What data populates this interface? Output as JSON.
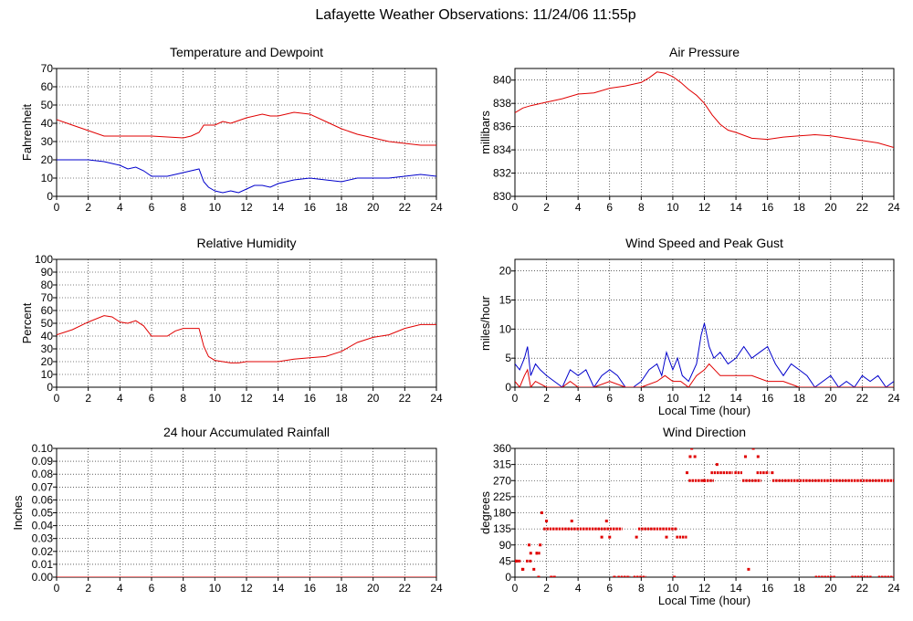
{
  "title": "Lafayette Weather Observations: 11/24/06 11:55p",
  "colors": {
    "red": "#e00000",
    "blue": "#0000cc",
    "grid": "#000000"
  },
  "chart_data": [
    {
      "id": "temp",
      "type": "line",
      "title": "Temperature and Dewpoint",
      "ylabel": "Fahrenheit",
      "xlabel": "",
      "xlim": [
        0,
        24
      ],
      "ylim": [
        0,
        70
      ],
      "yticks": [
        0,
        10,
        20,
        30,
        40,
        50,
        60,
        70
      ],
      "ytick_labels": [
        "0",
        "10",
        "20",
        "30",
        "40",
        "50",
        "60",
        "70"
      ],
      "xticks": [
        0,
        2,
        4,
        6,
        8,
        10,
        12,
        14,
        16,
        18,
        20,
        22,
        24
      ],
      "grid": true,
      "series": [
        {
          "color": "#e00000",
          "x": [
            0,
            1,
            2,
            3,
            3.5,
            4,
            5,
            6,
            7,
            8,
            8.5,
            9,
            9.3,
            10,
            10.5,
            11,
            12,
            13,
            13.5,
            14,
            15,
            16,
            17,
            18,
            19,
            20,
            21,
            22,
            23,
            24
          ],
          "y": [
            42,
            39,
            36,
            33,
            33,
            33,
            33,
            33,
            32.5,
            32,
            33,
            35,
            39,
            39,
            41,
            40,
            43,
            45,
            44,
            44,
            46,
            45,
            41,
            37,
            34,
            32,
            30,
            29,
            28,
            28
          ]
        },
        {
          "color": "#0000cc",
          "x": [
            0,
            1,
            2,
            3,
            3.5,
            4,
            4.5,
            5,
            5.5,
            6,
            7,
            7.5,
            8,
            8.5,
            9,
            9.3,
            9.6,
            10,
            10.5,
            11,
            11.5,
            12,
            12.5,
            13,
            13.5,
            14,
            15,
            16,
            17,
            18,
            19,
            20,
            21,
            22,
            23,
            24
          ],
          "y": [
            20,
            20,
            20,
            19,
            18,
            17,
            15,
            16,
            14,
            11,
            11,
            12,
            13,
            14,
            15,
            8,
            5,
            3,
            2,
            3,
            2,
            4,
            6,
            6,
            5,
            7,
            9,
            10,
            9,
            8,
            10,
            10,
            10,
            11,
            12,
            11
          ]
        }
      ]
    },
    {
      "id": "pressure",
      "type": "line",
      "title": "Air Pressure",
      "ylabel": "millibars",
      "xlabel": "",
      "xlim": [
        0,
        24
      ],
      "ylim": [
        830,
        841
      ],
      "yticks": [
        830,
        832,
        834,
        836,
        838,
        840
      ],
      "ytick_labels": [
        "830",
        "832",
        "834",
        "836",
        "838",
        "840"
      ],
      "xticks": [
        0,
        2,
        4,
        6,
        8,
        10,
        12,
        14,
        16,
        18,
        20,
        22,
        24
      ],
      "grid": true,
      "series": [
        {
          "color": "#e00000",
          "x": [
            0,
            0.5,
            1,
            2,
            3,
            4,
            5,
            6,
            7,
            8,
            8.5,
            9,
            9.5,
            10,
            10.5,
            11,
            11.5,
            12,
            12.5,
            13,
            13.5,
            14,
            15,
            16,
            17,
            18,
            19,
            20,
            21,
            22,
            23,
            24
          ],
          "y": [
            837.2,
            837.6,
            837.8,
            838.1,
            838.4,
            838.8,
            838.9,
            839.3,
            839.5,
            839.8,
            840.2,
            840.7,
            840.6,
            840.3,
            839.8,
            839.2,
            838.7,
            838.0,
            837.0,
            836.2,
            835.7,
            835.5,
            835.0,
            834.9,
            835.1,
            835.2,
            835.3,
            835.2,
            835.0,
            834.8,
            834.6,
            834.2
          ]
        }
      ]
    },
    {
      "id": "humidity",
      "type": "line",
      "title": "Relative Humidity",
      "ylabel": "Percent",
      "xlabel": "",
      "xlim": [
        0,
        24
      ],
      "ylim": [
        0,
        100
      ],
      "yticks": [
        0,
        10,
        20,
        30,
        40,
        50,
        60,
        70,
        80,
        90,
        100
      ],
      "ytick_labels": [
        "0",
        "10",
        "20",
        "30",
        "40",
        "50",
        "60",
        "70",
        "80",
        "90",
        "100"
      ],
      "xticks": [
        0,
        2,
        4,
        6,
        8,
        10,
        12,
        14,
        16,
        18,
        20,
        22,
        24
      ],
      "grid": true,
      "series": [
        {
          "color": "#e00000",
          "x": [
            0,
            1,
            2,
            3,
            3.5,
            4,
            4.5,
            5,
            5.5,
            6,
            7,
            7.5,
            8,
            8.5,
            9,
            9.3,
            9.6,
            10,
            11,
            11.5,
            12,
            13,
            14,
            15,
            16,
            17,
            18,
            19,
            20,
            21,
            22,
            23,
            24
          ],
          "y": [
            41,
            45,
            51,
            56,
            55,
            51,
            50,
            52,
            48,
            40,
            40,
            44,
            46,
            46,
            46,
            32,
            24,
            21,
            19,
            19,
            20,
            20,
            20,
            22,
            23,
            24,
            28,
            35,
            39,
            41,
            46,
            49,
            49
          ]
        }
      ]
    },
    {
      "id": "wind",
      "type": "line",
      "title": "Wind Speed and Peak Gust",
      "ylabel": "miles/hour",
      "xlabel": "Local Time (hour)",
      "xlim": [
        0,
        24
      ],
      "ylim": [
        0,
        22
      ],
      "yticks": [
        0,
        5,
        10,
        15,
        20
      ],
      "ytick_labels": [
        "0",
        "5",
        "10",
        "15",
        "20"
      ],
      "xticks": [
        0,
        2,
        4,
        6,
        8,
        10,
        12,
        14,
        16,
        18,
        20,
        22,
        24
      ],
      "grid": true,
      "series": [
        {
          "color": "#0000cc",
          "x": [
            0,
            0.3,
            0.6,
            0.8,
            1.0,
            1.3,
            1.6,
            2.0,
            2.5,
            3.0,
            3.5,
            4.0,
            4.5,
            5.0,
            5.5,
            6.0,
            6.5,
            7.0,
            7.5,
            8.0,
            8.5,
            9.0,
            9.3,
            9.6,
            10.0,
            10.3,
            10.6,
            11.0,
            11.5,
            11.8,
            12.0,
            12.3,
            12.6,
            13.0,
            13.5,
            14.0,
            14.5,
            15.0,
            15.5,
            16.0,
            16.5,
            17.0,
            17.5,
            18.0,
            18.5,
            19.0,
            19.5,
            20.0,
            20.5,
            21.0,
            21.5,
            22.0,
            22.5,
            23.0,
            23.5,
            24.0
          ],
          "y": [
            4,
            3,
            5,
            7,
            2,
            4,
            3,
            2,
            1,
            0,
            3,
            2,
            3,
            0,
            2,
            3,
            2,
            0,
            0,
            1,
            3,
            4,
            2,
            6,
            3,
            5,
            2,
            1,
            4,
            9,
            11,
            7,
            5,
            6,
            4,
            5,
            7,
            5,
            6,
            7,
            4,
            2,
            4,
            3,
            2,
            0,
            1,
            2,
            0,
            1,
            0,
            2,
            1,
            2,
            0,
            1
          ]
        },
        {
          "color": "#e00000",
          "x": [
            0,
            0.3,
            0.6,
            0.8,
            1.0,
            1.3,
            2.0,
            3.0,
            3.5,
            4.0,
            5.0,
            6.0,
            7.0,
            8.0,
            9.0,
            9.5,
            10.0,
            10.5,
            11.0,
            11.5,
            12.0,
            12.3,
            13.0,
            14.0,
            15.0,
            16.0,
            17.0,
            18.0,
            19.0,
            20.0,
            21.0,
            22.0,
            23.0,
            24.0
          ],
          "y": [
            1,
            0,
            2,
            3,
            0,
            1,
            0,
            0,
            1,
            0,
            0,
            1,
            0,
            0,
            1,
            2,
            1,
            1,
            0,
            2,
            3,
            4,
            2,
            2,
            2,
            1,
            1,
            0,
            0,
            0,
            0,
            0,
            0,
            0
          ]
        }
      ]
    },
    {
      "id": "rain",
      "type": "line",
      "title": "24 hour Accumulated Rainfall",
      "ylabel": "Inches",
      "xlabel": "",
      "xlim": [
        0,
        24
      ],
      "ylim": [
        0,
        0.1
      ],
      "yticks": [
        0,
        0.01,
        0.02,
        0.03,
        0.04,
        0.05,
        0.06,
        0.07,
        0.08,
        0.09,
        0.1
      ],
      "ytick_labels": [
        "0.00",
        "0.01",
        "0.02",
        "0.03",
        "0.04",
        "0.05",
        "0.06",
        "0.07",
        "0.08",
        "0.09",
        "0.10"
      ],
      "xticks": [
        0,
        2,
        4,
        6,
        8,
        10,
        12,
        14,
        16,
        18,
        20,
        22,
        24
      ],
      "grid": true,
      "series": [
        {
          "color": "#e00000",
          "x": [
            0,
            24
          ],
          "y": [
            0,
            0
          ]
        }
      ]
    },
    {
      "id": "winddir",
      "type": "scatter",
      "title": "Wind Direction",
      "ylabel": "degrees",
      "xlabel": "Local Time (hour)",
      "xlim": [
        0,
        24
      ],
      "ylim": [
        0,
        360
      ],
      "yticks": [
        0,
        45,
        90,
        135,
        180,
        225,
        270,
        315,
        360
      ],
      "ytick_labels": [
        "0",
        "45",
        "90",
        "135",
        "180",
        "225",
        "270",
        "315",
        "360"
      ],
      "xticks": [
        0,
        2,
        4,
        6,
        8,
        10,
        12,
        14,
        16,
        18,
        20,
        22,
        24
      ],
      "grid": true,
      "runs": [
        {
          "x0": 0,
          "x1": 0.4,
          "y": 45
        },
        {
          "x0": 0.4,
          "x1": 0.6,
          "y": 22
        },
        {
          "x0": 0.7,
          "x1": 1.1,
          "y": 45
        },
        {
          "x0": 1.3,
          "x1": 1.6,
          "y": 67
        },
        {
          "x0": 1.8,
          "x1": 6.8,
          "y": 135
        },
        {
          "x0": 6.5,
          "x1": 7.3,
          "y": 0
        },
        {
          "x0": 7.5,
          "x1": 8.3,
          "y": 0
        },
        {
          "x0": 7.8,
          "x1": 10.3,
          "y": 135
        },
        {
          "x0": 10.2,
          "x1": 10.9,
          "y": 112
        },
        {
          "x0": 11.0,
          "x1": 12.6,
          "y": 270
        },
        {
          "x0": 12.4,
          "x1": 13.8,
          "y": 292
        },
        {
          "x0": 13.9,
          "x1": 14.4,
          "y": 292
        },
        {
          "x0": 14.4,
          "x1": 15.6,
          "y": 270
        },
        {
          "x0": 15.3,
          "x1": 16.1,
          "y": 292
        },
        {
          "x0": 16.3,
          "x1": 24,
          "y": 270
        },
        {
          "x0": 19.0,
          "x1": 20.3,
          "y": 0
        },
        {
          "x0": 21.3,
          "x1": 22.6,
          "y": 0
        },
        {
          "x0": 23.0,
          "x1": 24,
          "y": 0
        }
      ],
      "points": [
        {
          "x": 0.1,
          "y": 45
        },
        {
          "x": 0.5,
          "y": 22
        },
        {
          "x": 0.9,
          "y": 90
        },
        {
          "x": 1.0,
          "y": 67
        },
        {
          "x": 1.2,
          "y": 22
        },
        {
          "x": 1.4,
          "y": 67
        },
        {
          "x": 1.5,
          "y": 0
        },
        {
          "x": 1.6,
          "y": 90
        },
        {
          "x": 1.7,
          "y": 180
        },
        {
          "x": 2.0,
          "y": 157
        },
        {
          "x": 2.3,
          "y": 0
        },
        {
          "x": 2.5,
          "y": 0
        },
        {
          "x": 3.6,
          "y": 157
        },
        {
          "x": 5.5,
          "y": 112
        },
        {
          "x": 5.8,
          "y": 157
        },
        {
          "x": 6.0,
          "y": 112
        },
        {
          "x": 6.3,
          "y": 0
        },
        {
          "x": 7.7,
          "y": 112
        },
        {
          "x": 9.6,
          "y": 112
        },
        {
          "x": 10.1,
          "y": 0
        },
        {
          "x": 10.9,
          "y": 292
        },
        {
          "x": 11.1,
          "y": 337
        },
        {
          "x": 11.2,
          "y": 360
        },
        {
          "x": 11.4,
          "y": 337
        },
        {
          "x": 12.0,
          "y": 270
        },
        {
          "x": 12.8,
          "y": 315
        },
        {
          "x": 14.6,
          "y": 337
        },
        {
          "x": 14.8,
          "y": 22
        },
        {
          "x": 15.1,
          "y": 360
        },
        {
          "x": 15.4,
          "y": 337
        },
        {
          "x": 16.3,
          "y": 292
        }
      ]
    }
  ]
}
